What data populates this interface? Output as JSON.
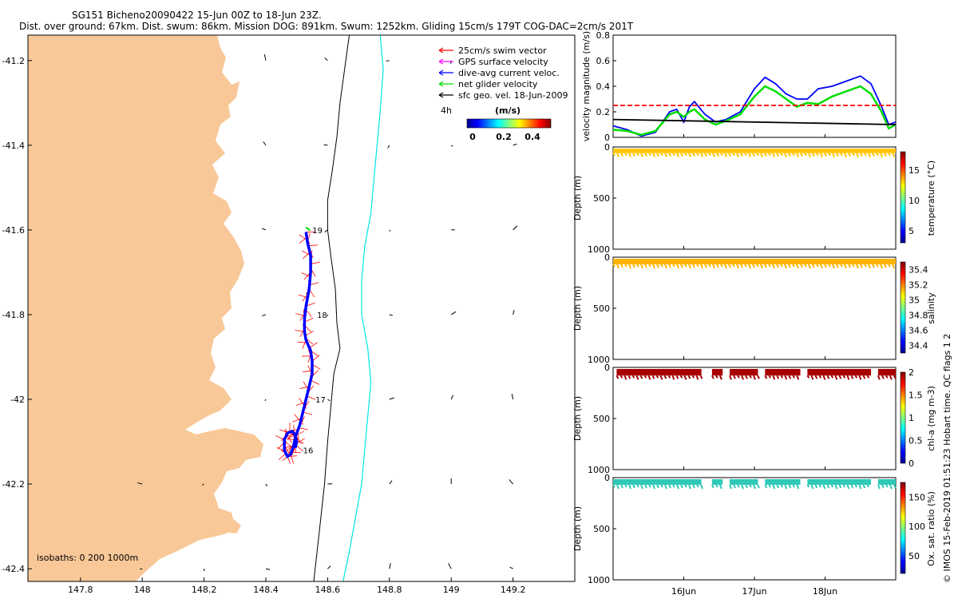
{
  "figure": {
    "title_line1": "SG151 Bicheno20090422 15-Jun 00Z to 18-Jun 23Z.",
    "title_line2": "Dist. over ground: 67km. Dist. swum: 86km. Mission DOG: 891km. Swum: 1252km. Gliding 15cm/s 179T COG-DAC=2cm/s 201T",
    "credit": "© IMOS 15-Feb-2019 01:51:23 Hobart time. QC flags 1  2"
  },
  "chart_data": [
    {
      "type": "scatter",
      "name": "map",
      "xlim": [
        147.63,
        149.4
      ],
      "ylim": [
        -42.43,
        -41.14
      ],
      "xticks": [
        147.8,
        148,
        148.2,
        148.4,
        148.6,
        148.8,
        149,
        149.2
      ],
      "yticks": [
        -41.2,
        -41.4,
        -41.6,
        -41.8,
        -42,
        -42.2,
        -42.4
      ],
      "xtick_labels": [
        "147.8",
        "148",
        "148.2",
        "148.4",
        "148.6",
        "148.8",
        "149",
        "149.2"
      ],
      "ytick_labels": [
        "-41.2",
        "-41.4",
        "-41.6",
        "-41.8",
        "-42",
        "-42.2",
        "-42.4"
      ],
      "legend": {
        "placement": "top-right",
        "entries": [
          {
            "label": "25cm/s swim vector",
            "color": "#ff0000"
          },
          {
            "label": "GPS surface velocity",
            "color": "#ff00ff"
          },
          {
            "label": "dive-avg current veloc.",
            "color": "#0000ff"
          },
          {
            "label": "net glider velocity",
            "color": "#00dd00"
          },
          {
            "label": "sfc geo. vel. 18-Jun-2009",
            "color": "#000000"
          }
        ],
        "scale_label": "4h",
        "colorbar_label": "(m/s)",
        "colorbar_ticks": [
          "0",
          "0.2",
          "0.4"
        ]
      },
      "isobaths_label": "isobaths: 0   200   1000m",
      "day_labels": [
        "19",
        "18",
        "17",
        "16"
      ],
      "colors": {
        "land": "#f9c898",
        "track": "#0000ff",
        "swim": "#ff0000",
        "isobath_200": "#000000",
        "isobath_1000": "#00e5e5"
      },
      "track": [
        [
          148.53,
          -41.605
        ],
        [
          148.535,
          -41.63
        ],
        [
          148.545,
          -41.66
        ],
        [
          148.545,
          -41.7
        ],
        [
          148.54,
          -41.74
        ],
        [
          148.53,
          -41.78
        ],
        [
          148.525,
          -41.81
        ],
        [
          148.525,
          -41.84
        ],
        [
          148.53,
          -41.86
        ],
        [
          148.545,
          -41.885
        ],
        [
          148.55,
          -41.91
        ],
        [
          148.55,
          -41.94
        ],
        [
          148.54,
          -41.97
        ],
        [
          148.53,
          -42.0
        ],
        [
          148.52,
          -42.03
        ],
        [
          148.51,
          -42.06
        ],
        [
          148.495,
          -42.09
        ],
        [
          148.49,
          -42.11
        ],
        [
          148.48,
          -42.13
        ],
        [
          148.47,
          -42.135
        ],
        [
          148.46,
          -42.12
        ],
        [
          148.46,
          -42.095
        ],
        [
          148.47,
          -42.08
        ],
        [
          148.485,
          -42.075
        ],
        [
          148.495,
          -42.085
        ],
        [
          148.5,
          -42.1
        ],
        [
          148.495,
          -42.115
        ]
      ],
      "isobath_200": [
        [
          148.67,
          -41.14
        ],
        [
          148.655,
          -41.22
        ],
        [
          148.64,
          -41.3
        ],
        [
          148.63,
          -41.38
        ],
        [
          148.615,
          -41.46
        ],
        [
          148.6,
          -41.53
        ],
        [
          148.6,
          -41.6
        ],
        [
          148.61,
          -41.66
        ],
        [
          148.625,
          -41.74
        ],
        [
          148.63,
          -41.82
        ],
        [
          148.64,
          -41.88
        ],
        [
          148.62,
          -41.94
        ],
        [
          148.61,
          -42.02
        ],
        [
          148.6,
          -42.1
        ],
        [
          148.59,
          -42.2
        ],
        [
          148.575,
          -42.3
        ],
        [
          148.555,
          -42.43
        ]
      ],
      "isobath_1000": [
        [
          148.77,
          -41.14
        ],
        [
          148.78,
          -41.22
        ],
        [
          148.77,
          -41.32
        ],
        [
          148.76,
          -41.4
        ],
        [
          148.75,
          -41.48
        ],
        [
          148.74,
          -41.56
        ],
        [
          148.72,
          -41.64
        ],
        [
          148.71,
          -41.72
        ],
        [
          148.71,
          -41.8
        ],
        [
          148.73,
          -41.88
        ],
        [
          148.74,
          -41.96
        ],
        [
          148.73,
          -42.04
        ],
        [
          148.72,
          -42.12
        ],
        [
          148.71,
          -42.2
        ],
        [
          148.69,
          -42.28
        ],
        [
          148.67,
          -42.36
        ],
        [
          148.65,
          -42.43
        ]
      ]
    },
    {
      "type": "line",
      "name": "velocity",
      "ylabel": "velocity magnitude (m/s)",
      "ylim": [
        0,
        0.8
      ],
      "yticks": [
        0,
        0.2,
        0.4,
        0.6,
        0.8
      ],
      "ytick_labels": [
        "0",
        "0.2",
        "0.4",
        "0.6",
        "0.8"
      ],
      "xlim": [
        0,
        4
      ],
      "xticks": [
        1,
        2,
        3
      ],
      "xtick_labels": [
        "16Jun",
        "17Jun",
        "18Jun"
      ],
      "series": [
        {
          "color": "#0000ff",
          "x": [
            0,
            0.2,
            0.4,
            0.6,
            0.8,
            0.9,
            1.0,
            1.08,
            1.15,
            1.3,
            1.45,
            1.6,
            1.8,
            2.0,
            2.15,
            2.3,
            2.45,
            2.6,
            2.75,
            2.9,
            3.1,
            3.3,
            3.5,
            3.65,
            3.8,
            3.9,
            4.0
          ],
          "y": [
            0.09,
            0.06,
            0.01,
            0.04,
            0.2,
            0.22,
            0.12,
            0.24,
            0.28,
            0.18,
            0.12,
            0.14,
            0.2,
            0.38,
            0.47,
            0.42,
            0.34,
            0.3,
            0.3,
            0.38,
            0.4,
            0.44,
            0.48,
            0.42,
            0.24,
            0.1,
            0.12
          ]
        },
        {
          "color": "#00dd00",
          "x": [
            0,
            0.2,
            0.4,
            0.6,
            0.8,
            0.9,
            1.0,
            1.08,
            1.15,
            1.3,
            1.45,
            1.6,
            1.8,
            2.0,
            2.15,
            2.3,
            2.45,
            2.6,
            2.75,
            2.9,
            3.1,
            3.3,
            3.5,
            3.65,
            3.8,
            3.9,
            4.0
          ],
          "y": [
            0.06,
            0.05,
            0.02,
            0.05,
            0.18,
            0.2,
            0.16,
            0.2,
            0.22,
            0.14,
            0.1,
            0.13,
            0.18,
            0.32,
            0.4,
            0.36,
            0.3,
            0.24,
            0.27,
            0.26,
            0.32,
            0.36,
            0.4,
            0.34,
            0.2,
            0.07,
            0.1
          ]
        },
        {
          "color": "#000000",
          "x": [
            0,
            4
          ],
          "y": [
            0.14,
            0.1
          ]
        },
        {
          "color": "#ff0000",
          "dashed": true,
          "x": [
            0,
            4
          ],
          "y": [
            0.25,
            0.25
          ]
        }
      ]
    },
    {
      "type": "scatter",
      "name": "temperature",
      "ylabel": "Depth (m)",
      "ylim": [
        1000,
        0
      ],
      "yticks": [
        0,
        500,
        1000
      ],
      "ytick_labels": [
        "0",
        "500",
        "1000"
      ],
      "colorbar_label": "temperature (°C)",
      "colorbar_ticks": [
        5,
        10,
        15
      ],
      "colorbar_tick_labels": [
        "5",
        "10",
        "15"
      ],
      "clim": [
        3,
        18
      ],
      "color": "#ffc400",
      "segments": [
        [
          0,
          4
        ]
      ],
      "depth_max": 60
    },
    {
      "type": "scatter",
      "name": "salinity",
      "ylabel": "Depth (m)",
      "ylim": [
        1000,
        0
      ],
      "yticks": [
        0,
        500,
        1000
      ],
      "ytick_labels": [
        "0",
        "500",
        "1000"
      ],
      "colorbar_label": "salinity",
      "colorbar_ticks": [
        34.4,
        34.6,
        34.8,
        35,
        35.2,
        35.4
      ],
      "colorbar_tick_labels": [
        "34.4",
        "34.6",
        "34.8",
        "35",
        "35.2",
        "35.4"
      ],
      "clim": [
        34.3,
        35.5
      ],
      "color": "#ffb400",
      "segments": [
        [
          0,
          4
        ]
      ],
      "depth_max": 70
    },
    {
      "type": "scatter",
      "name": "chl-a",
      "ylabel": "Depth (m)",
      "ylim": [
        1000,
        0
      ],
      "yticks": [
        0,
        500,
        1000
      ],
      "ytick_labels": [
        "0",
        "500",
        "1000"
      ],
      "colorbar_label": "chl-a (mg m-3)",
      "colorbar_ticks": [
        0,
        0.5,
        1,
        1.5,
        2
      ],
      "colorbar_tick_labels": [
        "0",
        "0.5",
        "1",
        "1.5",
        "2"
      ],
      "clim": [
        0,
        2
      ],
      "color": "#a80000",
      "segments": [
        [
          0.05,
          1.25
        ],
        [
          1.4,
          1.55
        ],
        [
          1.65,
          2.05
        ],
        [
          2.15,
          2.65
        ],
        [
          2.75,
          3.65
        ],
        [
          3.75,
          4.0
        ]
      ],
      "depth_max": 80
    },
    {
      "type": "scatter",
      "name": "oxygen",
      "ylabel": "Depth (m)",
      "ylim": [
        1000,
        0
      ],
      "yticks": [
        0,
        500,
        1000
      ],
      "ytick_labels": [
        "0",
        "500",
        "1000"
      ],
      "colorbar_label": "Ox. sat. ratio (%)",
      "colorbar_ticks": [
        50,
        100,
        150
      ],
      "colorbar_tick_labels": [
        "50",
        "100",
        "150"
      ],
      "clim": [
        20,
        175
      ],
      "color": "#30c8b8",
      "segments": [
        [
          0.0,
          1.25
        ],
        [
          1.4,
          1.55
        ],
        [
          1.65,
          2.05
        ],
        [
          2.15,
          2.65
        ],
        [
          2.75,
          3.65
        ],
        [
          3.75,
          4.0
        ]
      ],
      "depth_max": 70,
      "xticks": [
        1,
        2,
        3
      ],
      "xtick_labels": [
        "16Jun",
        "17Jun",
        "18Jun"
      ]
    }
  ]
}
